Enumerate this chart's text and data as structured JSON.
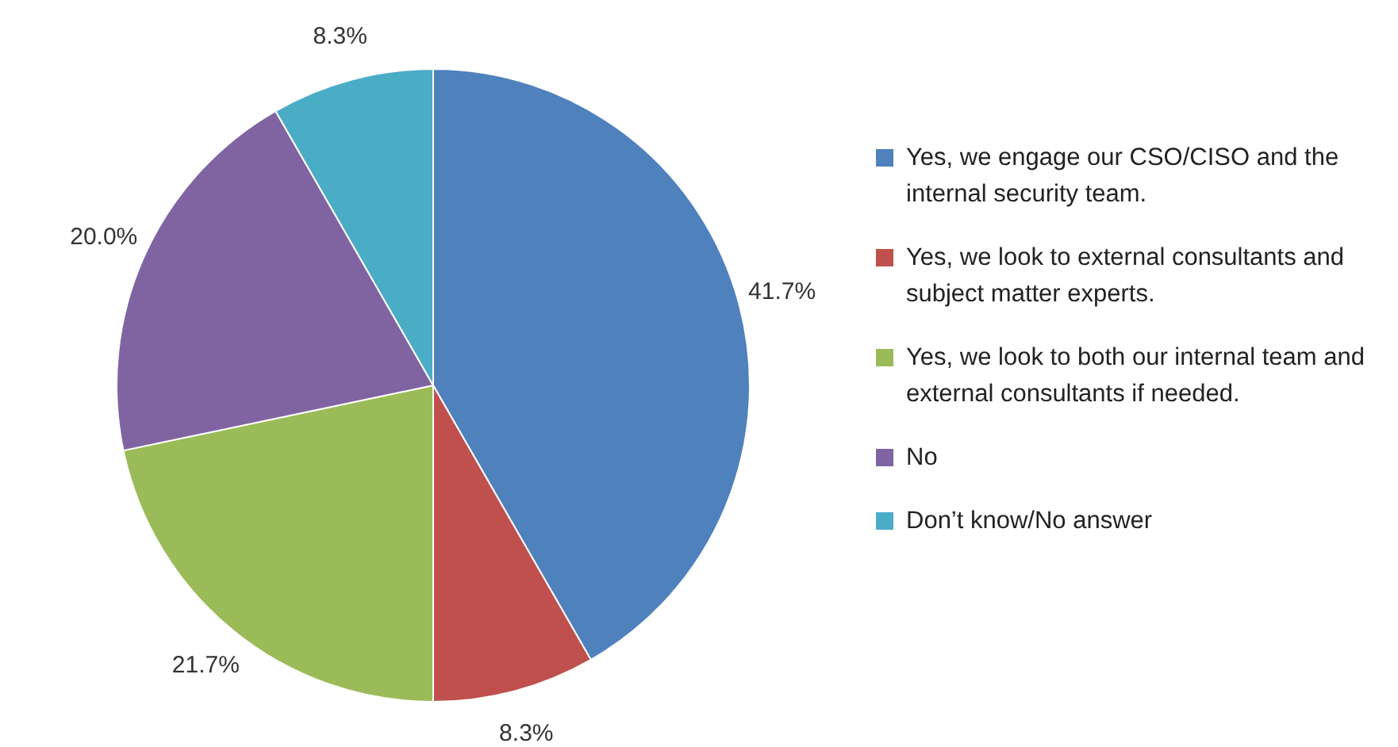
{
  "chart_data": {
    "type": "pie",
    "categories": [
      "Yes, we engage our CSO/CISO and the internal security team.",
      "Yes, we look to external consultants and subject matter experts.",
      "Yes, we look to both our internal team and external consultants if needed.",
      "No",
      "Don’t know/No answer"
    ],
    "values": [
      41.7,
      8.3,
      21.7,
      20.0,
      8.3
    ],
    "colors": [
      "#4f81bd",
      "#c0504d",
      "#9bbb59",
      "#8064a2",
      "#4bacc6"
    ],
    "value_labels": [
      "41.7%",
      "8.3%",
      "21.7%",
      "20.0%",
      "8.3%"
    ],
    "legend": "right"
  }
}
